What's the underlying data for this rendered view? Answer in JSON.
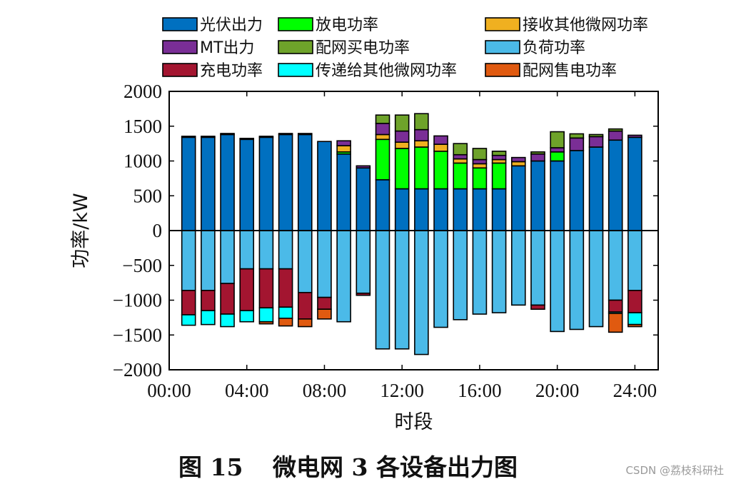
{
  "chart_data": {
    "type": "bar",
    "stacked": true,
    "xlabel": "时段",
    "ylabel": "功率/kW",
    "ylim": [
      -2000,
      2000
    ],
    "xlim": [
      0,
      25.2
    ],
    "xticks": [
      {
        "v": 0,
        "label": "00:00"
      },
      {
        "v": 4,
        "label": "04:00"
      },
      {
        "v": 8,
        "label": "08:00"
      },
      {
        "v": 12,
        "label": "12:00"
      },
      {
        "v": 16,
        "label": "16:00"
      },
      {
        "v": 20,
        "label": "20:00"
      },
      {
        "v": 24,
        "label": "24:00"
      }
    ],
    "yticks": [
      {
        "v": 2000,
        "label": "2000"
      },
      {
        "v": 1500,
        "label": "1500"
      },
      {
        "v": 1000,
        "label": "1000"
      },
      {
        "v": 500,
        "label": "500"
      },
      {
        "v": 0,
        "label": "0"
      },
      {
        "v": -500,
        "label": "−500"
      },
      {
        "v": -1000,
        "label": "−1000"
      },
      {
        "v": -1500,
        "label": "−1500"
      },
      {
        "v": -2000,
        "label": "−2000"
      }
    ],
    "hours": [
      1,
      2,
      3,
      4,
      5,
      6,
      7,
      8,
      9,
      10,
      11,
      12,
      13,
      14,
      15,
      16,
      17,
      18,
      19,
      20,
      21,
      22,
      23,
      24
    ],
    "positive_order": [
      "pv",
      "discharge",
      "exchange_in",
      "mt",
      "grid_buy"
    ],
    "negative_order": [
      "load",
      "charge",
      "transfer_out",
      "grid_sell"
    ],
    "series": [
      {
        "key": "pv",
        "name": "光伏出力",
        "color": "#0070c0",
        "values": [
          1340,
          1340,
          1380,
          1310,
          1340,
          1380,
          1380,
          1280,
          1100,
          900,
          730,
          600,
          600,
          600,
          600,
          600,
          600,
          930,
          1000,
          1000,
          1150,
          1200,
          1300,
          1340
        ]
      },
      {
        "key": "discharge",
        "name": "放电功率",
        "color": "#00ff00",
        "values": [
          0,
          0,
          0,
          0,
          0,
          0,
          0,
          0,
          30,
          0,
          580,
          580,
          600,
          540,
          370,
          300,
          370,
          0,
          0,
          130,
          0,
          0,
          0,
          0
        ]
      },
      {
        "key": "exchange_in",
        "name": "接收其他微网功率",
        "color": "#f0b020",
        "values": [
          0,
          0,
          0,
          0,
          0,
          0,
          0,
          0,
          90,
          0,
          70,
          90,
          90,
          100,
          60,
          60,
          50,
          60,
          0,
          0,
          0,
          0,
          0,
          0
        ]
      },
      {
        "key": "mt",
        "name": "MT出力",
        "color": "#7a2e96",
        "values": [
          15,
          15,
          15,
          15,
          15,
          15,
          15,
          0,
          70,
          30,
          160,
          160,
          160,
          120,
          60,
          60,
          60,
          60,
          100,
          60,
          180,
          150,
          130,
          30
        ]
      },
      {
        "key": "grid_buy",
        "name": "配网买电功率",
        "color": "#6ea32a",
        "values": [
          0,
          0,
          0,
          0,
          0,
          0,
          0,
          0,
          0,
          0,
          120,
          230,
          230,
          0,
          160,
          160,
          60,
          0,
          30,
          230,
          60,
          30,
          30,
          0
        ]
      },
      {
        "key": "load",
        "name": "负荷功率",
        "color": "#4bbae8",
        "values": [
          -860,
          -860,
          -760,
          -550,
          -550,
          -550,
          -890,
          -960,
          -1310,
          -900,
          -1700,
          -1700,
          -1780,
          -1390,
          -1280,
          -1200,
          -1180,
          -1070,
          -1070,
          -1450,
          -1420,
          -1380,
          -1000,
          -860
        ]
      },
      {
        "key": "charge",
        "name": "充电功率",
        "color": "#a31530",
        "values": [
          -350,
          -290,
          -440,
          -600,
          -560,
          -550,
          -380,
          -170,
          0,
          -30,
          0,
          0,
          0,
          0,
          0,
          0,
          0,
          0,
          -60,
          0,
          0,
          0,
          -170,
          -320
        ]
      },
      {
        "key": "transfer_out",
        "name": "传递给其他微网功率",
        "color": "#00ffff",
        "values": [
          -150,
          -200,
          -180,
          -160,
          -200,
          -160,
          0,
          0,
          0,
          0,
          0,
          0,
          0,
          0,
          0,
          0,
          0,
          0,
          0,
          0,
          0,
          0,
          -20,
          -170
        ]
      },
      {
        "key": "grid_sell",
        "name": "配网售电功率",
        "color": "#e05a10",
        "values": [
          0,
          0,
          0,
          0,
          -30,
          -110,
          -110,
          -140,
          0,
          0,
          0,
          0,
          0,
          0,
          0,
          0,
          0,
          0,
          0,
          0,
          0,
          0,
          -270,
          -30
        ]
      }
    ]
  },
  "caption": {
    "figure_label": "图 15",
    "title": "微电网 3 各设备出力图"
  },
  "watermark": "CSDN @荔枝科研社"
}
